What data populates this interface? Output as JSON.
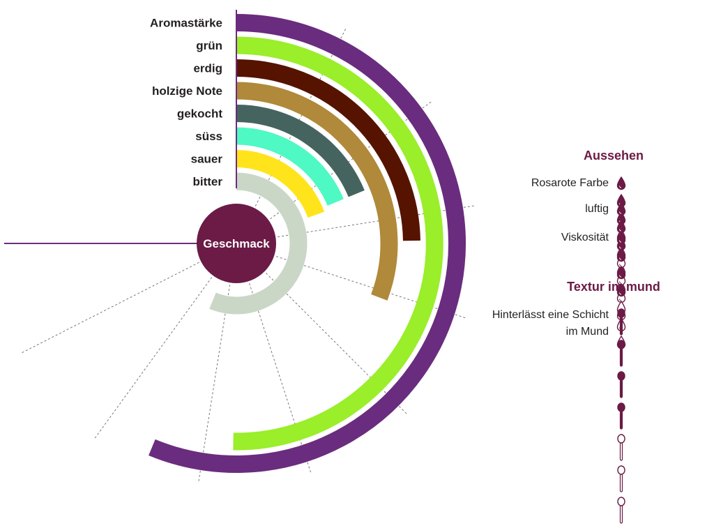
{
  "chart_data": {
    "type": "radial-bar",
    "center_label": "Geschmack",
    "max": 10,
    "categories": [
      "Aromastärke",
      "grün",
      "erdig",
      "holzige Note",
      "gekocht",
      "süss",
      "sauer",
      "bitter"
    ],
    "values": [
      7.5,
      6.7,
      3.3,
      4.1,
      2.5,
      2.5,
      2.6,
      7.5
    ],
    "colors": [
      "#6a2c7e",
      "#9aee2a",
      "#561300",
      "#b0893a",
      "#46645f",
      "#4ef9c3",
      "#ffe41b",
      "#cad7c6"
    ]
  },
  "appearance": {
    "title": "Aussehen",
    "items": [
      {
        "label": "Rosarote Farbe",
        "filled": 3,
        "total": 7
      },
      {
        "label": "luftig",
        "filled": 3,
        "total": 7
      },
      {
        "label": "Viskosität",
        "filled": 4,
        "total": 7
      }
    ]
  },
  "texture": {
    "title": "Textur im mund",
    "items": [
      {
        "label_line1": "Hinterlässt eine Schicht",
        "label_line2": "im Mund",
        "filled": 4,
        "total": 7
      }
    ]
  },
  "colors": {
    "accent": "#6b1b45",
    "divider": "#6a2c7e",
    "grid": "#777777"
  }
}
